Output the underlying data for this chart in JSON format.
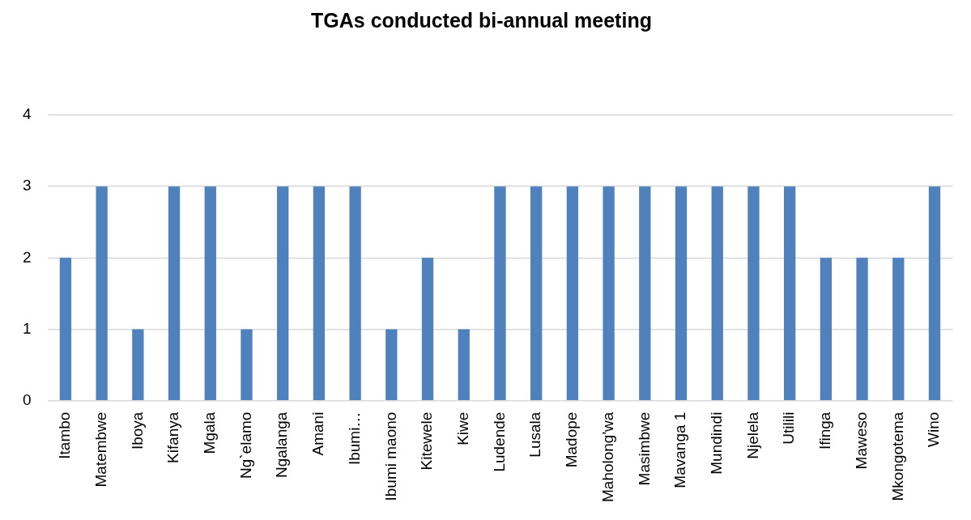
{
  "chart_data": {
    "type": "bar",
    "title": "TGAs conducted bi-annual meeting",
    "categories": [
      "Itambo",
      "Matembwe",
      "Iboya",
      "Kifanya",
      "Mgala",
      "Ng`elamo",
      "Ngalanga",
      "Amani",
      "Ibumi…",
      "Ibumi maono",
      "Kitewele",
      "Kiwe",
      "Ludende",
      "Lusala",
      "Madope",
      "Maholong'wa",
      "Masimbwe",
      "Mavanga 1",
      "Mundindi",
      "Njelela",
      "Utilili",
      "Ifinga",
      "Maweso",
      "Mkongotema",
      "Wino"
    ],
    "values": [
      2,
      3,
      1,
      3,
      3,
      1,
      3,
      3,
      3,
      1,
      2,
      1,
      3,
      3,
      3,
      3,
      3,
      3,
      3,
      3,
      3,
      2,
      2,
      2,
      3
    ],
    "color": "#4f81bd",
    "ylim": [
      0,
      4
    ],
    "yticks": [
      0,
      1,
      2,
      3,
      4
    ],
    "grid": "y",
    "legend": false
  }
}
